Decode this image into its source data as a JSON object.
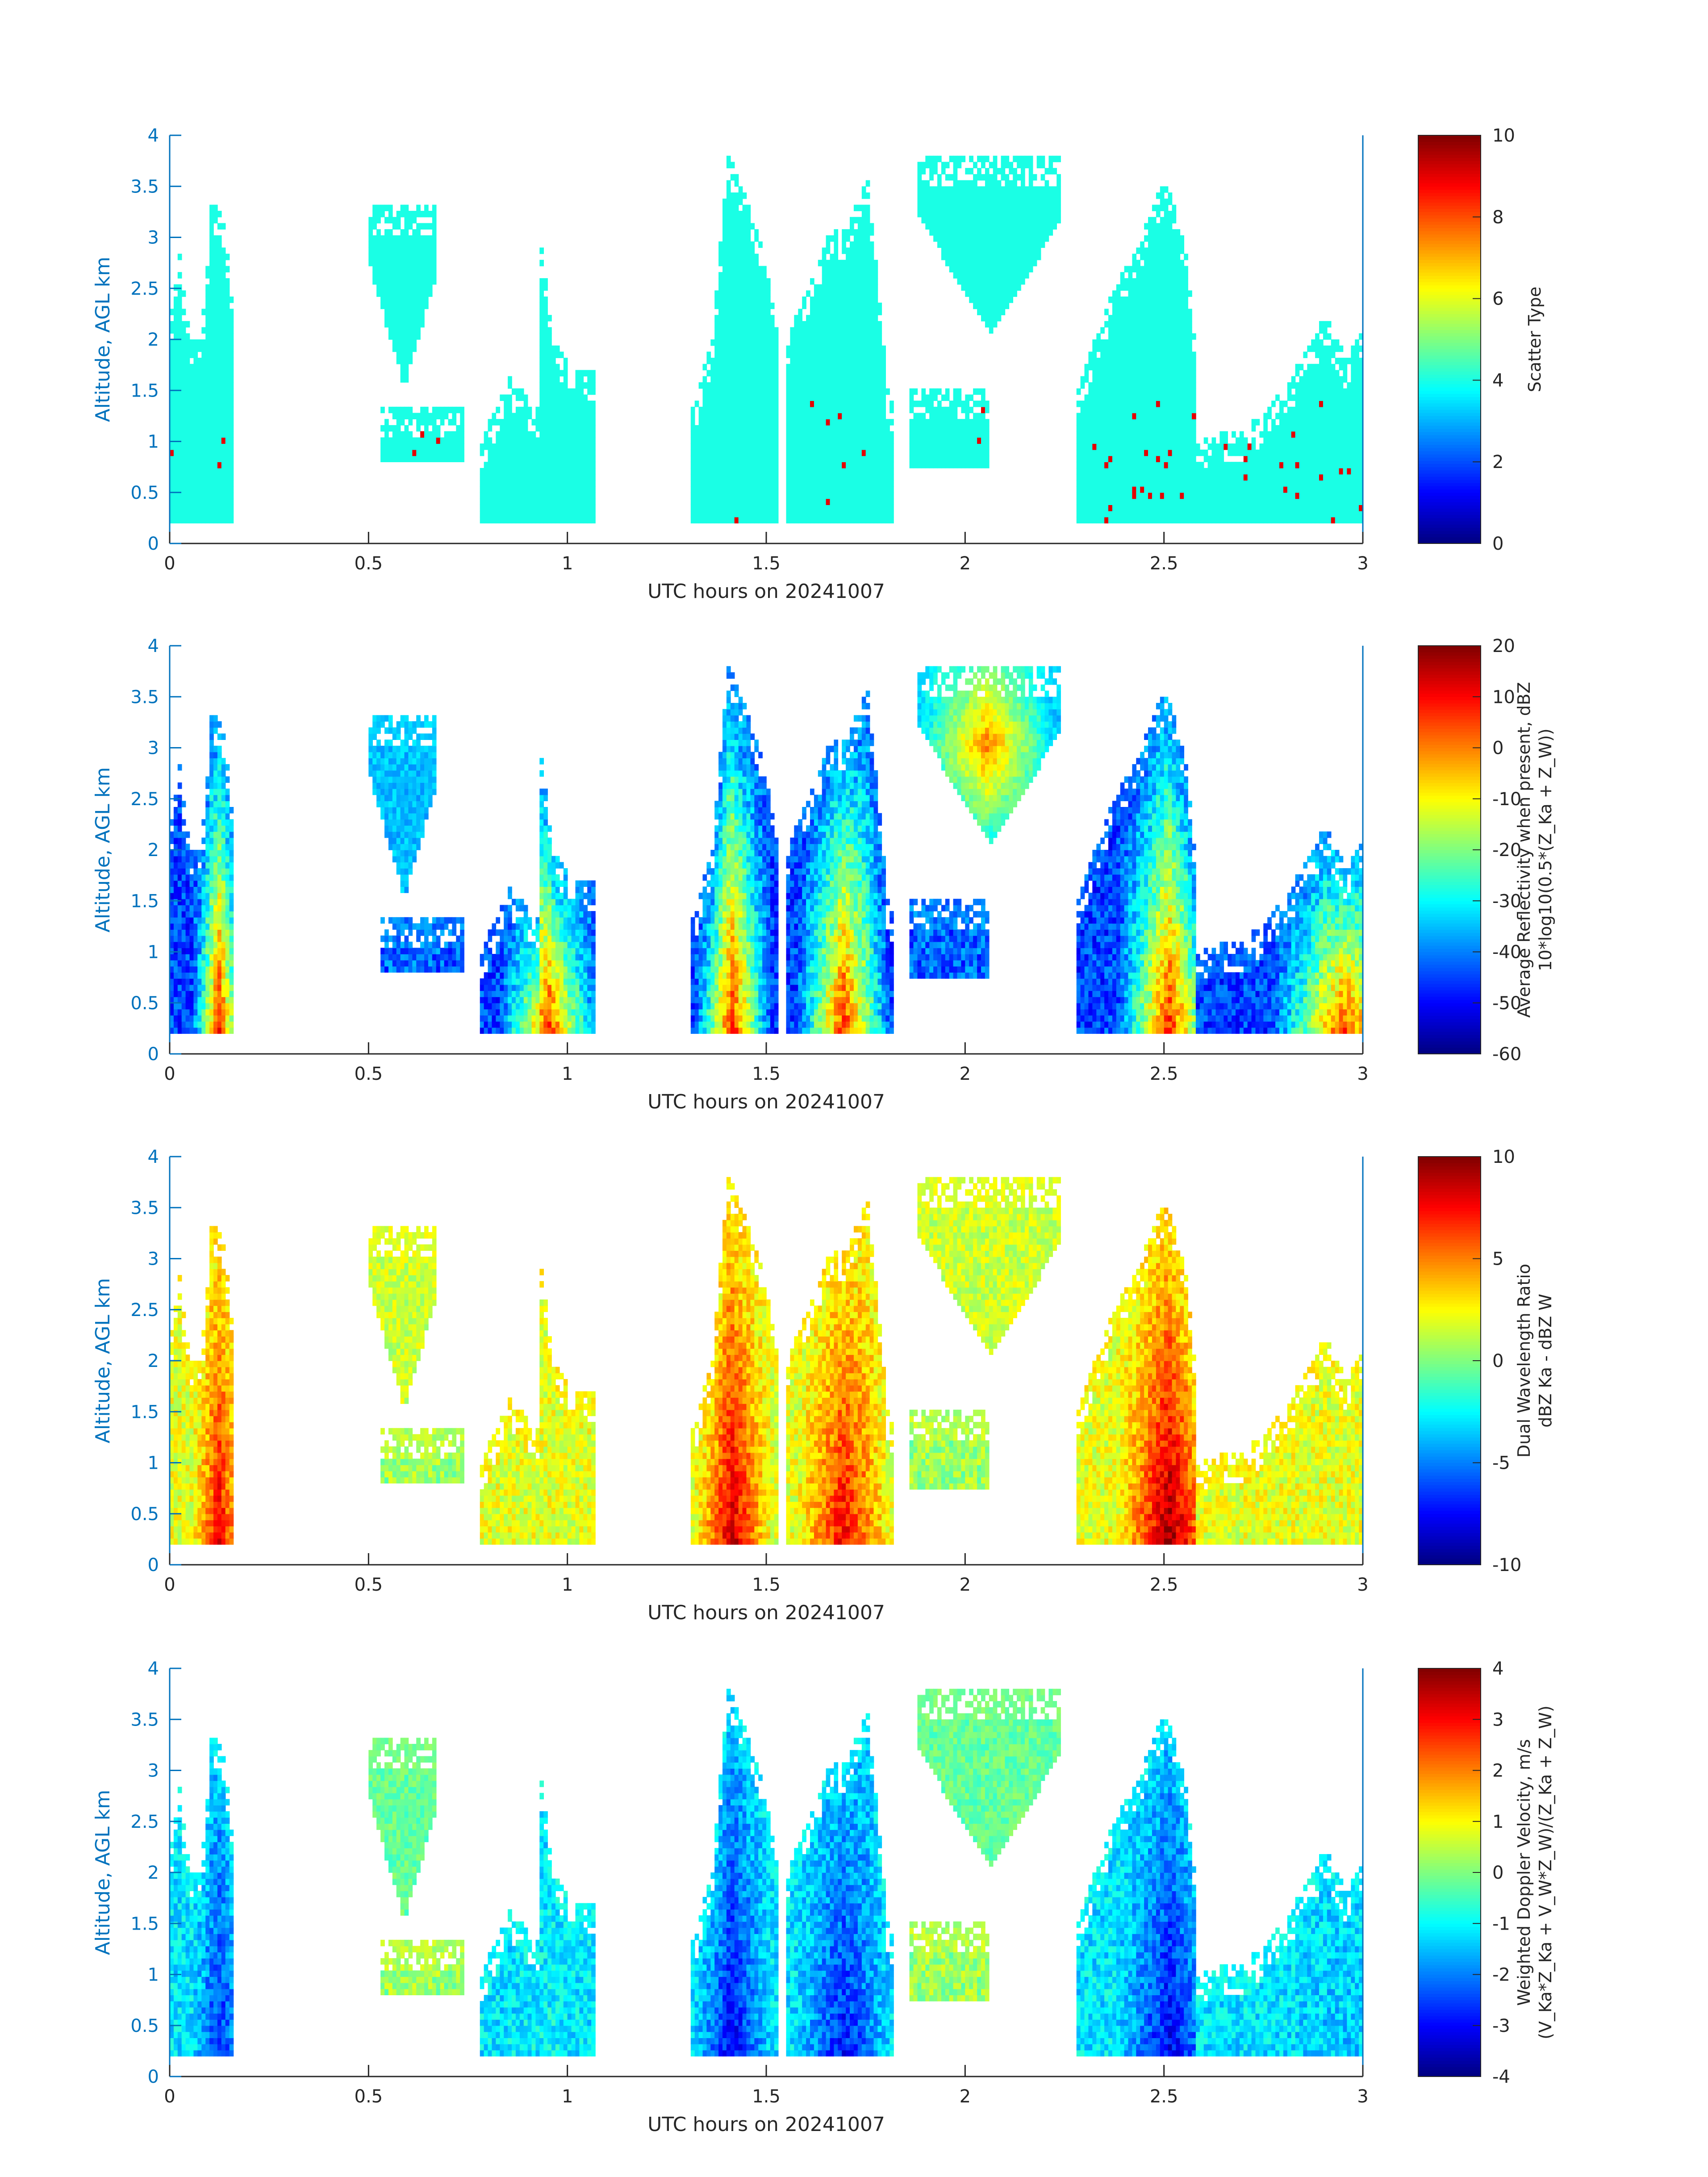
{
  "figure": {
    "background": "#ffffff",
    "axis_color": "#0072BD",
    "text_color": "#262626",
    "colormap": "jet"
  },
  "chart_data": [
    {
      "type": "heatmap",
      "title": "",
      "xlabel": "UTC hours on 20241007",
      "ylabel": "Altitude, AGL km",
      "xlim": [
        0,
        3
      ],
      "ylim": [
        0,
        4
      ],
      "xticks": [
        "0",
        "0.5",
        "1",
        "1.5",
        "2",
        "2.5",
        "3"
      ],
      "yticks": [
        "0",
        "0.5",
        "1",
        "1.5",
        "2",
        "2.5",
        "3",
        "3.5",
        "4"
      ],
      "colorbar": {
        "label": [
          "Scatter Type"
        ],
        "clim": [
          0,
          10
        ],
        "ticks": [
          "0",
          "2",
          "4",
          "6",
          "8",
          "10"
        ]
      },
      "field": "scatter_type"
    },
    {
      "type": "heatmap",
      "title": "",
      "xlabel": "UTC hours on 20241007",
      "ylabel": "Altitude, AGL km",
      "xlim": [
        0,
        3
      ],
      "ylim": [
        0,
        4
      ],
      "xticks": [
        "0",
        "0.5",
        "1",
        "1.5",
        "2",
        "2.5",
        "3"
      ],
      "yticks": [
        "0",
        "0.5",
        "1",
        "1.5",
        "2",
        "2.5",
        "3",
        "3.5",
        "4"
      ],
      "colorbar": {
        "label": [
          "Average Reflectivity when present, dBZ",
          "10*log10(0.5*(Z_Ka + Z_W))"
        ],
        "clim": [
          -60,
          20
        ],
        "ticks": [
          "-60",
          "-50",
          "-40",
          "-30",
          "-20",
          "-10",
          "0",
          "10",
          "20"
        ]
      },
      "field": "reflectivity"
    },
    {
      "type": "heatmap",
      "title": "",
      "xlabel": "UTC hours on 20241007",
      "ylabel": "Altitude, AGL km",
      "xlim": [
        0,
        3
      ],
      "ylim": [
        0,
        4
      ],
      "xticks": [
        "0",
        "0.5",
        "1",
        "1.5",
        "2",
        "2.5",
        "3"
      ],
      "yticks": [
        "0",
        "0.5",
        "1",
        "1.5",
        "2",
        "2.5",
        "3",
        "3.5",
        "4"
      ],
      "colorbar": {
        "label": [
          "Dual Wavelength Ratio",
          "dBZ Ka - dBZ W"
        ],
        "clim": [
          -10,
          10
        ],
        "ticks": [
          "-10",
          "-5",
          "0",
          "5",
          "10"
        ]
      },
      "field": "dwr"
    },
    {
      "type": "heatmap",
      "title": "",
      "xlabel": "UTC hours on 20241007",
      "ylabel": "Altitude, AGL km",
      "xlim": [
        0,
        3
      ],
      "ylim": [
        0,
        4
      ],
      "xticks": [
        "0",
        "0.5",
        "1",
        "1.5",
        "2",
        "2.5",
        "3"
      ],
      "yticks": [
        "0",
        "0.5",
        "1",
        "1.5",
        "2",
        "2.5",
        "3",
        "3.5",
        "4"
      ],
      "colorbar": {
        "label": [
          "Weighted Doppler Velocity, m/s",
          "(V_Ka*Z_Ka + V_W*Z_W)/(Z_Ka + Z_W)"
        ],
        "clim": [
          -4,
          4
        ],
        "ticks": [
          "-4",
          "-3",
          "-2",
          "-1",
          "0",
          "1",
          "2",
          "3",
          "4"
        ]
      },
      "field": "velocity"
    }
  ],
  "echo_segments": [
    {
      "t0": 0.0,
      "t1": 0.155,
      "top": [
        [
          0.0,
          2.3
        ],
        [
          0.02,
          2.8
        ],
        [
          0.045,
          2.0
        ],
        [
          0.075,
          2.0
        ],
        [
          0.1,
          3.3
        ],
        [
          0.13,
          3.2
        ],
        [
          0.155,
          2.3
        ]
      ],
      "cores": [
        [
          0.12,
          8,
          -2.8
        ]
      ]
    },
    {
      "t0": 0.5,
      "t1": 0.67,
      "segment_kind": "upper",
      "layer": [
        1.5,
        3.3
      ]
    },
    {
      "t0": 0.53,
      "t1": 0.74,
      "segment_kind": "low",
      "layer": [
        0.8,
        1.3
      ]
    },
    {
      "t0": 0.78,
      "t1": 1.07,
      "top": [
        [
          0.78,
          1.0
        ],
        [
          0.85,
          1.6
        ],
        [
          0.92,
          1.3
        ],
        [
          0.93,
          2.9
        ],
        [
          0.96,
          2.0
        ],
        [
          1.0,
          1.7
        ],
        [
          1.07,
          1.7
        ]
      ],
      "cores": [
        [
          0.95,
          2,
          -1.0
        ]
      ]
    },
    {
      "t0": 1.31,
      "t1": 1.53,
      "top": [
        [
          1.31,
          1.3
        ],
        [
          1.36,
          2.0
        ],
        [
          1.4,
          3.8
        ],
        [
          1.44,
          3.4
        ],
        [
          1.48,
          3.0
        ],
        [
          1.53,
          2.0
        ]
      ],
      "cores": [
        [
          1.41,
          9,
          -3.2
        ]
      ]
    },
    {
      "t0": 1.55,
      "t1": 1.82,
      "top": [
        [
          1.55,
          2.0
        ],
        [
          1.6,
          2.5
        ],
        [
          1.65,
          3.0
        ],
        [
          1.7,
          3.1
        ],
        [
          1.75,
          3.6
        ],
        [
          1.8,
          1.5
        ],
        [
          1.82,
          1.2
        ]
      ],
      "cores": [
        [
          1.69,
          8,
          -3.0
        ]
      ]
    },
    {
      "t0": 1.88,
      "t1": 2.24,
      "segment_kind": "upper",
      "layer": [
        2.0,
        3.8
      ]
    },
    {
      "t0": 1.86,
      "t1": 2.06,
      "segment_kind": "low",
      "layer": [
        0.7,
        1.5
      ]
    },
    {
      "t0": 2.28,
      "t1": 2.58,
      "top": [
        [
          2.28,
          1.5
        ],
        [
          2.37,
          2.5
        ],
        [
          2.43,
          2.9
        ],
        [
          2.5,
          3.6
        ],
        [
          2.55,
          2.8
        ],
        [
          2.58,
          1.7
        ]
      ],
      "cores": [
        [
          2.51,
          10,
          -3.2
        ]
      ]
    },
    {
      "t0": 2.58,
      "t1": 3.0,
      "top": [
        [
          2.58,
          1.0
        ],
        [
          2.7,
          1.1
        ],
        [
          2.8,
          1.5
        ],
        [
          2.9,
          2.2
        ],
        [
          2.95,
          1.8
        ],
        [
          3.0,
          2.1
        ]
      ],
      "cores": [
        [
          2.95,
          2,
          -1.5
        ]
      ]
    }
  ]
}
